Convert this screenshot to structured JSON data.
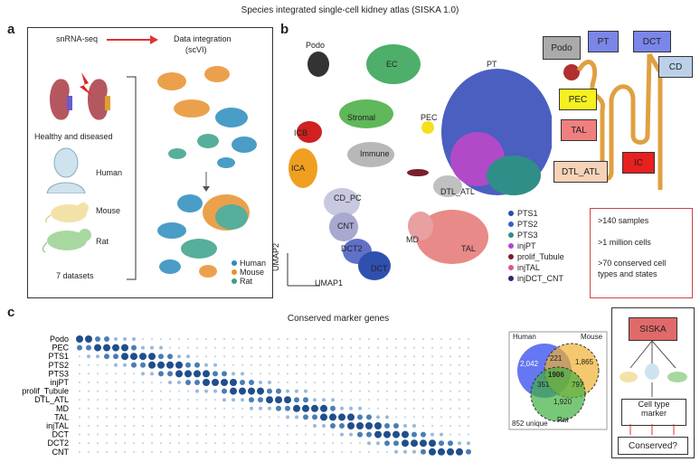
{
  "figure_title": "Species integrated single-cell kidney atlas (SISKA 1.0)",
  "panel_a": {
    "letter": "a",
    "snrna": "snRNA-seq",
    "integration_title": "Data integration",
    "integration_sub": "(scVI)",
    "healthy": "Healthy and diseased",
    "human": "Human",
    "mouse": "Mouse",
    "rat": "Rat",
    "datasets": "7 datasets",
    "legend": [
      {
        "label": "Human",
        "color": "#2b8cbe"
      },
      {
        "label": "Mouse",
        "color": "#e8912d"
      },
      {
        "label": "Rat",
        "color": "#3aa08a"
      }
    ]
  },
  "panel_b": {
    "letter": "b",
    "clusters": {
      "podo": "Podo",
      "ec": "EC",
      "pt": "PT",
      "stromal": "Stromal",
      "pec": "PEC",
      "icb": "ICB",
      "immune": "Immune",
      "ica": "ICA",
      "dtl_atl": "DTL_ATL",
      "cd_pc": "CD_PC",
      "cnt": "CNT",
      "dct2": "DCT2",
      "md": "MD",
      "tal": "TAL",
      "dct": "DCT"
    },
    "umap1": "UMAP1",
    "umap2": "UMAP2",
    "pt_legend": [
      {
        "label": "PTS1",
        "color": "#2b4fa0"
      },
      {
        "label": "PTS2",
        "color": "#3b5cc4"
      },
      {
        "label": "PTS3",
        "color": "#2f8f88"
      },
      {
        "label": "injPT",
        "color": "#b04ac8"
      },
      {
        "label": "prolif_Tubule",
        "color": "#7a1f2b"
      },
      {
        "label": "injTAL",
        "color": "#d45a8a"
      },
      {
        "label": "injDCT_CNT",
        "color": "#2a2a70"
      }
    ],
    "nephron_labels": {
      "podo": "Podo",
      "pt": "PT",
      "dct": "DCT",
      "cd": "CD",
      "pec": "PEC",
      "tal": "TAL",
      "ic": "IC",
      "dtl_atl": "DTL_ATL"
    },
    "stats": [
      ">140 samples",
      ">1 million cells",
      ">70 conserved cell types and states"
    ]
  },
  "panel_c": {
    "letter": "c",
    "title": "Conserved marker genes",
    "rows": [
      "Podo",
      "PEC",
      "PTS1",
      "PTS2",
      "PTS3",
      "injPT",
      "prolif_Tubule",
      "DTL_ATL",
      "MD",
      "TAL",
      "injTAL",
      "DCT",
      "DCT2",
      "CNT"
    ],
    "venn": {
      "human": "Human",
      "mouse": "Mouse",
      "rat": "Rat",
      "human_only": "2,042",
      "mouse_only": "1,865",
      "rat_only": "1,920",
      "hm": "221",
      "hr": "351",
      "mr": "797",
      "all": "1906",
      "unique": "852 unique"
    },
    "flow": {
      "siska": "SISKA",
      "cell_type": "Cell type",
      "marker": "marker",
      "conserved": "Conserved?"
    }
  }
}
